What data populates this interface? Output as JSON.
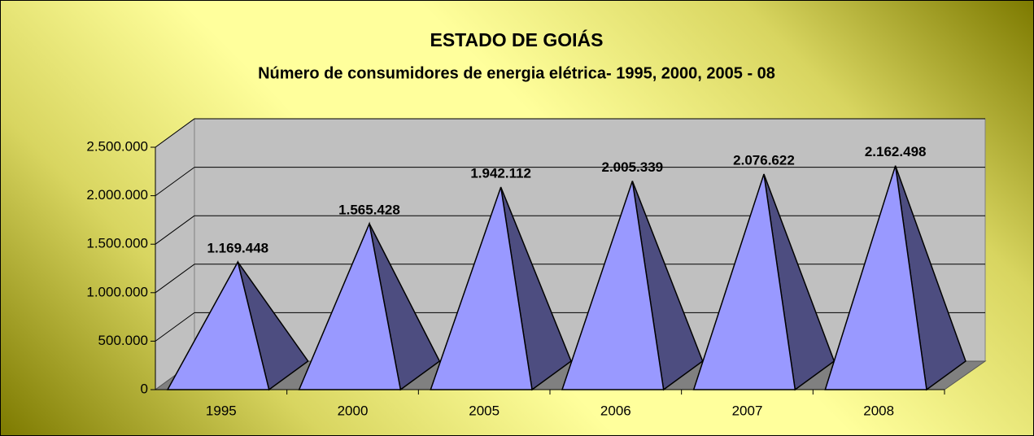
{
  "chart_data": {
    "type": "pyramid",
    "title": "ESTADO DE GOIÁS",
    "subtitle": "Número de consumidores de energia elétrica- 1995, 2000, 2005 - 08",
    "categories": [
      "1995",
      "2000",
      "2005",
      "2006",
      "2007",
      "2008"
    ],
    "values": [
      1169448,
      1565428,
      1942112,
      2005339,
      2076622,
      2162498
    ],
    "value_labels": [
      "1.169.448",
      "1.565.428",
      "1.942.112",
      "2.005.339",
      "2.076.622",
      "2.162.498"
    ],
    "color": "#9999ff",
    "ylim": [
      0,
      2500000
    ],
    "yticks": [
      0,
      {
        "value": 500000,
        "label": "500.000"
      },
      {
        "value": 1000000,
        "label": "1.000.000"
      },
      {
        "value": 1500000,
        "label": "1.500.000"
      },
      {
        "value": 2000000,
        "label": "2.000.000"
      },
      {
        "value": 2500000,
        "label": "2.500.000"
      }
    ],
    "grid": true
  }
}
